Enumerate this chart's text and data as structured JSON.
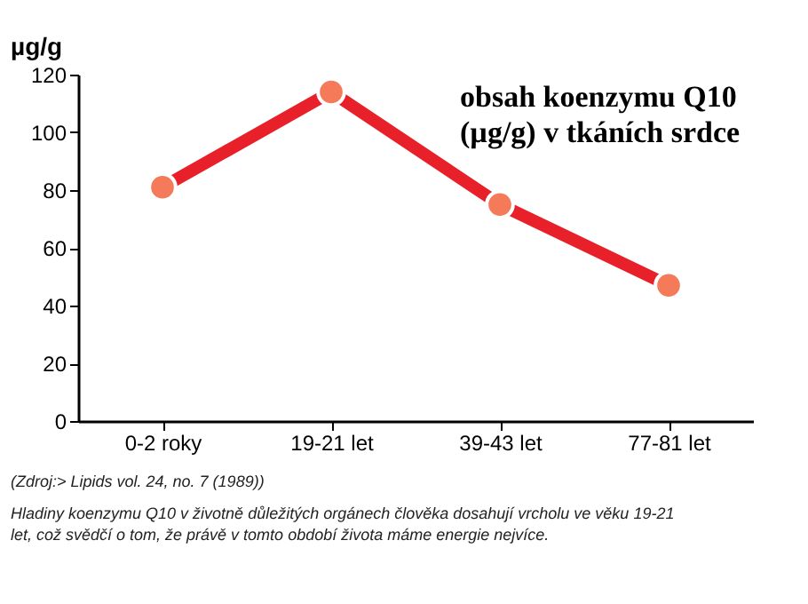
{
  "chart_data": {
    "type": "line",
    "title": "obsah koenzymu Q10 (µg/g) v tkáních srdce",
    "ylabel": "µg/g",
    "categories": [
      "0-2 roky",
      "19-21 let",
      "39-43 let",
      "77-81 let"
    ],
    "series": [
      {
        "color": "#e8202a",
        "values": [
          81,
          114,
          75,
          47
        ]
      }
    ],
    "ylim": [
      0,
      120
    ],
    "yticks": [
      0,
      20,
      40,
      60,
      80,
      100,
      120
    ],
    "grid": false,
    "marker": "circle",
    "line_style": "solid",
    "annotations": [
      "(Zdroj:> Lipids vol. 24, no. 7 (1989))",
      "Hladiny koenzymu Q10 v životně důležitých orgánech člověka dosahují vrcholu ve věku 19-21 let, což svědčí o tom, že právě v tomto období života máme energie nejvíce."
    ]
  }
}
